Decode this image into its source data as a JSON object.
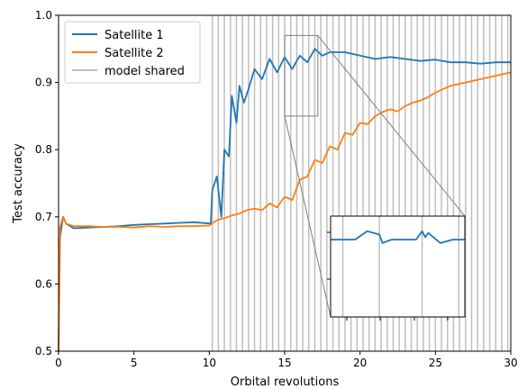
{
  "chart_data": {
    "type": "line",
    "xlabel": "Orbital revolutions",
    "ylabel": "Test accuracy",
    "xlim": [
      0,
      30
    ],
    "ylim": [
      0.5,
      1.0
    ],
    "x_ticks": [
      0,
      5,
      10,
      15,
      20,
      25,
      30
    ],
    "y_ticks": [
      0.5,
      0.6,
      0.7,
      0.8,
      0.9,
      1.0
    ],
    "x_tick_labels": [
      "0",
      "5",
      "10",
      "15",
      "20",
      "25",
      "30"
    ],
    "y_tick_labels": [
      "0.5",
      "0.6",
      "0.7",
      "0.8",
      "0.9",
      "1.0"
    ],
    "grid": false,
    "legend_position": "top-left",
    "legend": [
      "Satellite 1",
      "Satellite 2",
      "model shared"
    ],
    "series": [
      {
        "name": "Satellite 1",
        "color": "#1f77b4",
        "x": [
          0,
          0.1,
          0.3,
          0.5,
          1,
          2,
          3,
          4,
          5,
          6,
          7,
          8,
          9,
          10.1,
          10.2,
          10.5,
          10.8,
          11,
          11.3,
          11.5,
          11.8,
          12,
          12.3,
          12.6,
          13,
          13.5,
          14,
          14.5,
          15,
          15.5,
          16,
          16.5,
          17,
          17.5,
          18,
          19,
          20,
          21,
          22,
          23,
          24,
          25,
          26,
          27,
          28,
          29,
          30
        ],
        "y": [
          0.5,
          0.67,
          0.7,
          0.69,
          0.683,
          0.684,
          0.685,
          0.686,
          0.688,
          0.689,
          0.69,
          0.691,
          0.692,
          0.69,
          0.74,
          0.76,
          0.7,
          0.8,
          0.79,
          0.88,
          0.84,
          0.895,
          0.87,
          0.89,
          0.92,
          0.905,
          0.935,
          0.915,
          0.938,
          0.92,
          0.94,
          0.93,
          0.95,
          0.94,
          0.945,
          0.945,
          0.94,
          0.935,
          0.938,
          0.935,
          0.932,
          0.934,
          0.93,
          0.93,
          0.928,
          0.93,
          0.93
        ]
      },
      {
        "name": "Satellite 2",
        "color": "#ff7f0e",
        "x": [
          0,
          0.1,
          0.3,
          0.5,
          1,
          2,
          3,
          4,
          5,
          6,
          7,
          8,
          9,
          10,
          10.5,
          11,
          11.5,
          12,
          12.5,
          13,
          13.5,
          14,
          14.5,
          15,
          15.5,
          16,
          16.5,
          17,
          17.5,
          18,
          18.5,
          19,
          19.5,
          20,
          20.5,
          21,
          21.5,
          22,
          22.5,
          23,
          23.5,
          24,
          24.5,
          25,
          25.5,
          26,
          27,
          28,
          29,
          30
        ],
        "y": [
          0.5,
          0.685,
          0.7,
          0.69,
          0.686,
          0.686,
          0.685,
          0.685,
          0.684,
          0.686,
          0.685,
          0.686,
          0.686,
          0.687,
          0.695,
          0.698,
          0.702,
          0.705,
          0.71,
          0.712,
          0.71,
          0.72,
          0.714,
          0.73,
          0.725,
          0.755,
          0.76,
          0.785,
          0.78,
          0.805,
          0.8,
          0.825,
          0.822,
          0.84,
          0.838,
          0.85,
          0.856,
          0.86,
          0.857,
          0.865,
          0.87,
          0.873,
          0.878,
          0.885,
          0.89,
          0.895,
          0.9,
          0.905,
          0.91,
          0.915
        ]
      }
    ],
    "model_shared_x": [
      10.2,
      10.6,
      11.0,
      11.4,
      11.8,
      12.2,
      12.6,
      13.0,
      13.4,
      13.8,
      14.2,
      14.6,
      15.0,
      15.4,
      15.8,
      16.2,
      16.6,
      17.0,
      17.4,
      17.8,
      18.2,
      18.6,
      19.0,
      19.4,
      19.8,
      20.2,
      20.6,
      21.0,
      21.4,
      21.8,
      22.2,
      22.6,
      23.0,
      23.4,
      23.8,
      24.2,
      24.6,
      25.0,
      25.4,
      25.8,
      26.2,
      26.6,
      27.0,
      27.4,
      27.8,
      28.2,
      28.6,
      29.0,
      29.4,
      29.8
    ],
    "model_shared_color": "#bfbfbf",
    "zoom_region": {
      "x": [
        15,
        17.2
      ],
      "y": [
        0.85,
        0.97
      ]
    },
    "inset": {
      "series_name": "Satellite 1",
      "x": [
        15.0,
        15.2,
        15.4,
        15.6,
        15.8,
        15.85,
        16.0,
        16.2,
        16.4,
        16.5,
        16.55,
        16.6,
        16.8,
        17.0,
        17.2
      ],
      "y": [
        0.942,
        0.942,
        0.942,
        0.952,
        0.948,
        0.938,
        0.942,
        0.942,
        0.942,
        0.952,
        0.945,
        0.95,
        0.938,
        0.942,
        0.942
      ],
      "shared_x": [
        15.2,
        15.8,
        16.5,
        17.1
      ]
    }
  }
}
